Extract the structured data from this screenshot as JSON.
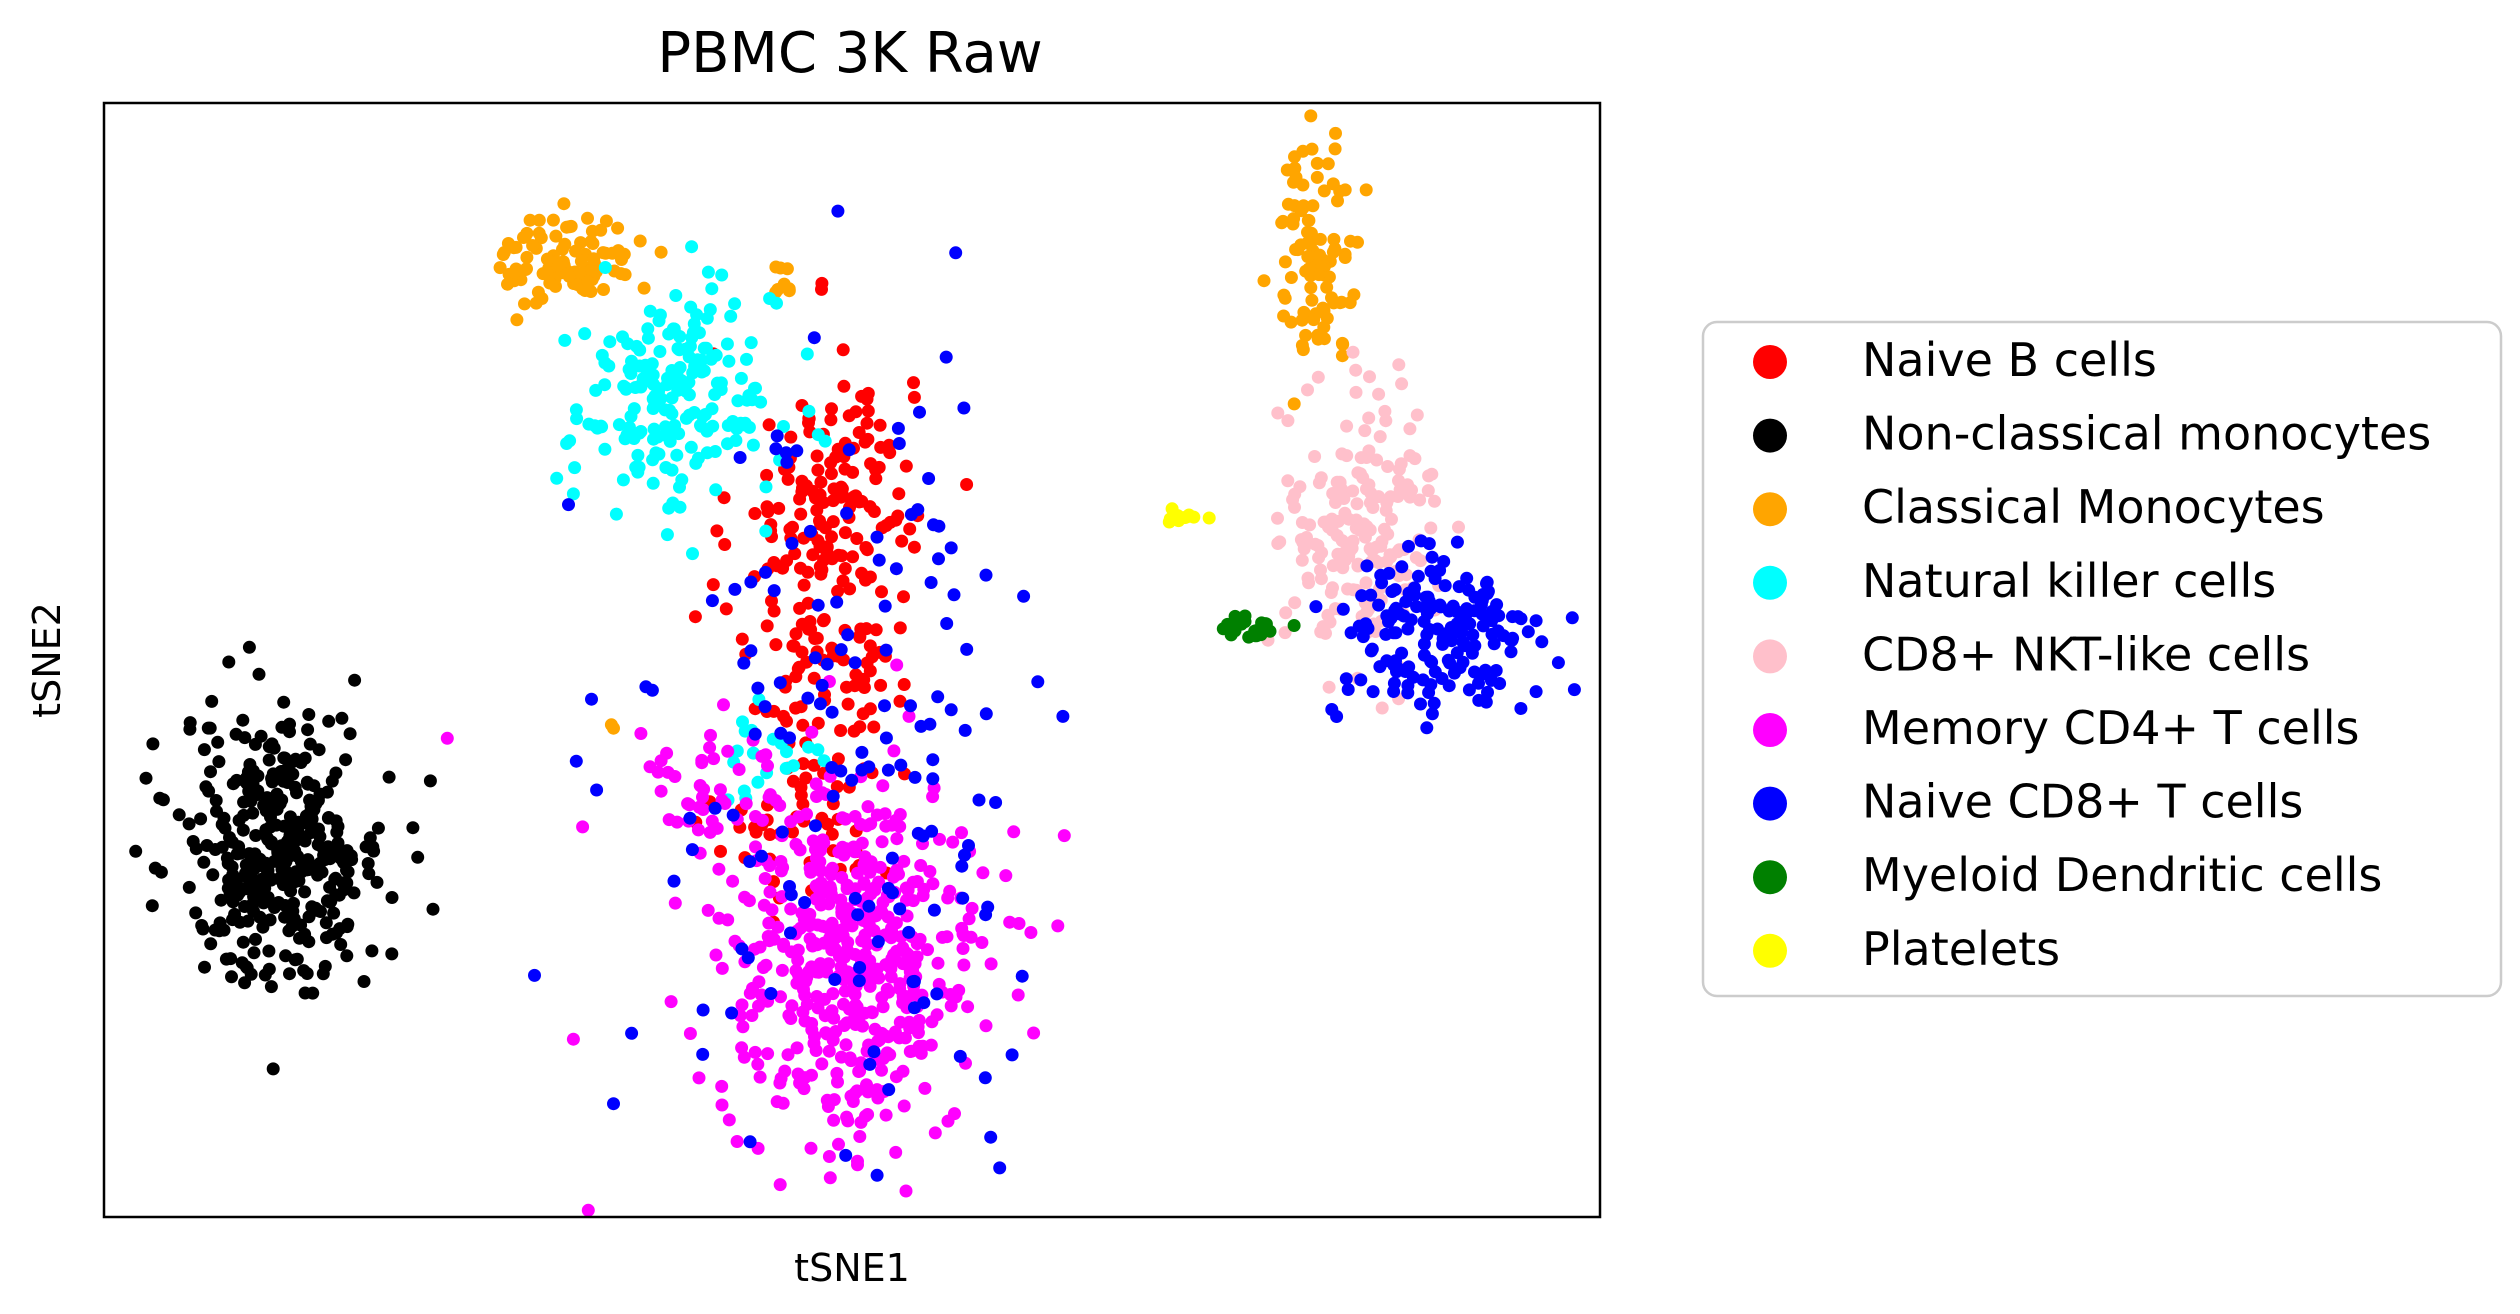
{
  "chart_data": {
    "type": "scatter",
    "title": "PBMC 3K Raw",
    "xlabel": "tSNE1",
    "ylabel": "tSNE2",
    "xlim": [
      0,
      100
    ],
    "ylim": [
      0,
      100
    ],
    "grid": false,
    "legend_position": "right",
    "series": [
      {
        "name": "Naive B cells",
        "color": "#ff0000",
        "points": []
      },
      {
        "name": "Non-classical monocytes",
        "color": "#000000",
        "points": []
      },
      {
        "name": "Classical Monocytes",
        "color": "#ffa500",
        "points": []
      },
      {
        "name": "Natural killer  cells",
        "color": "#00ffff",
        "points": []
      },
      {
        "name": "CD8+ NKT-like cells",
        "color": "#ffc0cb",
        "points": []
      },
      {
        "name": "Memory CD4+ T cells",
        "color": "#ff00ff",
        "points": []
      },
      {
        "name": "Naive CD8+ T cells",
        "color": "#0000ff",
        "points": []
      },
      {
        "name": "Myeloid Dendritic cells",
        "color": "#008000",
        "points": []
      },
      {
        "name": "Platelets",
        "color": "#ffff00",
        "points": []
      }
    ]
  }
}
